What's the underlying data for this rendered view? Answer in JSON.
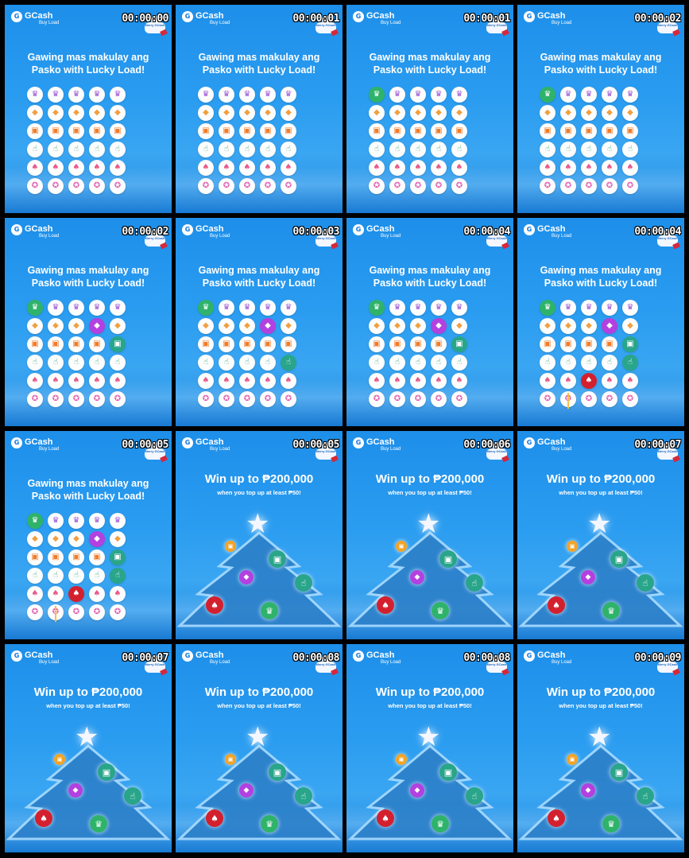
{
  "brand": {
    "mark": "G",
    "name": "GCash",
    "sub": "Buy Load",
    "badge": "Merry GCash"
  },
  "headline_lines": [
    "Gawing mas makulay ang",
    "Pasko with Lucky Load!"
  ],
  "win_title": "Win up to ₱200,000",
  "win_sub": "when you top up at least ₱50!",
  "grid_rows": [
    {
      "icon": "crown-icon",
      "glyph": "♛",
      "cls": "c-crown"
    },
    {
      "icon": "gem-icon",
      "glyph": "◆",
      "cls": "c-gem"
    },
    {
      "icon": "gift-icon",
      "glyph": "▣",
      "cls": "c-gift"
    },
    {
      "icon": "thumbs-up-icon",
      "glyph": "☝",
      "cls": "c-thumb"
    },
    {
      "icon": "cards-icon",
      "glyph": "♠",
      "cls": "c-cards"
    },
    {
      "icon": "medal-icon",
      "glyph": "✪",
      "cls": "c-medal"
    }
  ],
  "colors": {
    "bg_blue": "#2a9cf0",
    "green": "#2fb36b",
    "purple": "#b340e0",
    "red": "#d4202e",
    "orange": "#f2a326"
  },
  "frames": [
    {
      "ts": "00:00:00",
      "type": "grid",
      "hl": []
    },
    {
      "ts": "00:00:01",
      "type": "grid",
      "hl": []
    },
    {
      "ts": "00:00:01",
      "type": "grid",
      "hl": [
        [
          0,
          0,
          "hl-green"
        ]
      ]
    },
    {
      "ts": "00:00:02",
      "type": "grid",
      "hl": [
        [
          0,
          0,
          "hl-green"
        ]
      ]
    },
    {
      "ts": "00:00:02",
      "type": "grid",
      "hl": [
        [
          0,
          0,
          "hl-green"
        ],
        [
          1,
          3,
          "hl-purple"
        ],
        [
          2,
          4,
          "hl-teal"
        ]
      ]
    },
    {
      "ts": "00:00:03",
      "type": "grid",
      "hl": [
        [
          0,
          0,
          "hl-green"
        ],
        [
          1,
          3,
          "hl-purple"
        ],
        [
          3,
          4,
          "hl-teal"
        ]
      ]
    },
    {
      "ts": "00:00:04",
      "type": "grid",
      "hl": [
        [
          0,
          0,
          "hl-green"
        ],
        [
          1,
          3,
          "hl-purple"
        ],
        [
          2,
          4,
          "hl-teal"
        ]
      ]
    },
    {
      "ts": "00:00:04",
      "type": "grid",
      "hl": [
        [
          0,
          0,
          "hl-green"
        ],
        [
          1,
          3,
          "hl-purple"
        ],
        [
          2,
          4,
          "hl-teal"
        ],
        [
          3,
          4,
          "hl-teal"
        ],
        [
          4,
          2,
          "hl-red"
        ]
      ]
    },
    {
      "ts": "00:00:05",
      "type": "grid",
      "hl": [
        [
          0,
          0,
          "hl-green"
        ],
        [
          1,
          3,
          "hl-purple"
        ],
        [
          2,
          4,
          "hl-teal"
        ],
        [
          3,
          4,
          "hl-teal"
        ],
        [
          4,
          2,
          "hl-red"
        ]
      ]
    },
    {
      "ts": "00:00:05",
      "type": "tree"
    },
    {
      "ts": "00:00:06",
      "type": "tree"
    },
    {
      "ts": "00:00:07",
      "type": "tree"
    },
    {
      "ts": "00:00:07",
      "type": "tree"
    },
    {
      "ts": "00:00:08",
      "type": "tree"
    },
    {
      "ts": "00:00:08",
      "type": "tree"
    },
    {
      "ts": "00:00:09",
      "type": "tree"
    }
  ]
}
